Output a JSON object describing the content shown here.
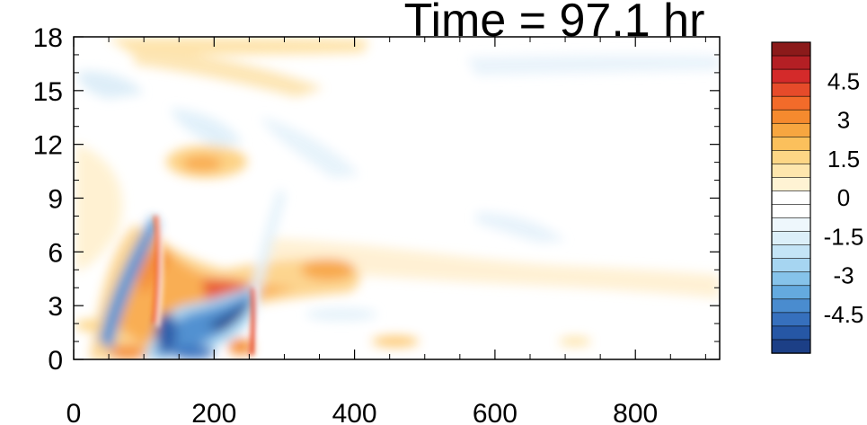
{
  "chart_data": {
    "type": "heatmap",
    "title": "Time = 97.1 hr",
    "xlabel": "",
    "ylabel": "",
    "xlim": [
      0,
      920
    ],
    "ylim": [
      0,
      18
    ],
    "x_ticks": [
      0,
      200,
      400,
      600,
      800
    ],
    "x_tick_labels": [
      "0",
      "200",
      "400",
      "600",
      "800"
    ],
    "y_ticks": [
      0,
      3,
      6,
      9,
      12,
      15,
      18
    ],
    "y_tick_labels": [
      "0",
      "3",
      "6",
      "9",
      "12",
      "15",
      "18"
    ],
    "colorbar": {
      "min": -6,
      "max": 6,
      "step": 0.5,
      "labels": [
        "4.5",
        "3",
        "1.5",
        "0",
        "-1.5",
        "-3",
        "-4.5"
      ],
      "label_values": [
        4.5,
        3,
        1.5,
        0,
        -1.5,
        -3,
        -4.5
      ],
      "colors": [
        "#8b1a1a",
        "#b41f24",
        "#d42a2a",
        "#e64b2a",
        "#f26b2a",
        "#f58a2e",
        "#f7a640",
        "#fbc05c",
        "#fdd685",
        "#fee6ad",
        "#fff3d4",
        "#ffffff",
        "#ffffff",
        "#eef7fc",
        "#dceff9",
        "#c4e4f6",
        "#a6d5f1",
        "#86c3ea",
        "#64aadf",
        "#4a8ccf",
        "#3670bd",
        "#2657a5",
        "#1c3f86"
      ]
    },
    "features": [
      {
        "x": 170,
        "y": 1.2,
        "value": -5.0
      },
      {
        "x": 235,
        "y": 2.2,
        "value": -5.5
      },
      {
        "x": 170,
        "y": 5.5,
        "value": 3.0
      },
      {
        "x": 245,
        "y": 4.0,
        "value": 3.5
      },
      {
        "x": 115,
        "y": 6.5,
        "value": 3.5
      },
      {
        "x": 370,
        "y": 4.8,
        "value": 2.5
      },
      {
        "x": 220,
        "y": 10.9,
        "value": 2.5
      },
      {
        "x": 650,
        "y": 4.2,
        "value": 0.5
      },
      {
        "x": 600,
        "y": 16.5,
        "value": -0.3
      }
    ]
  }
}
